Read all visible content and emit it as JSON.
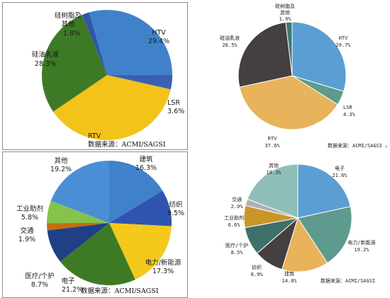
{
  "chart_data": [
    {
      "type": "pie",
      "title": "",
      "source": "数据来源：ACMI/SAGSI",
      "slices": [
        {
          "label": "HTV",
          "value": 29.4,
          "text": "29.4%",
          "color": "#3f82c9"
        },
        {
          "label": "LSR",
          "value": 3.6,
          "text": "3.6%",
          "color": "#3a5fb5"
        },
        {
          "label": "RTV",
          "value": 37.0,
          "text": "",
          "color": "#f2c318"
        },
        {
          "label": "硅油乳液",
          "value": 28.3,
          "text": "28.3%",
          "color": "#3e7a26"
        },
        {
          "label": "硅树脂及其他",
          "value": 1.8,
          "text": "1.8%",
          "color": "#2f55a8"
        }
      ]
    },
    {
      "type": "pie",
      "title": "",
      "source": "数据来源：ACMI/SAGSI",
      "slices": [
        {
          "label": "HTV",
          "value": 29.7,
          "text": "29.7%",
          "color": "#5b9ed3"
        },
        {
          "label": "LSR",
          "value": 4.3,
          "text": "4.3%",
          "color": "#5f9a8e"
        },
        {
          "label": "RTV",
          "value": 37.6,
          "text": "37.6%",
          "color": "#e8b35a"
        },
        {
          "label": "硅油乳液",
          "value": 26.5,
          "text": "26.5%",
          "color": "#463f3f"
        },
        {
          "label": "硅树脂及其他",
          "value": 1.9,
          "text": "1.9%",
          "color": "#3f7a73"
        }
      ]
    },
    {
      "type": "pie",
      "title": "",
      "source": "数据来源：ACMI/SAGSI",
      "slices": [
        {
          "label": "建筑",
          "value": 16.3,
          "text": "16.3%",
          "color": "#3f82c9"
        },
        {
          "label": "纺织",
          "value": 9.5,
          "text": "9.5%",
          "color": "#2f55b0"
        },
        {
          "label": "电力/新能源",
          "value": 17.3,
          "text": "17.3%",
          "color": "#f4c91c"
        },
        {
          "label": "电子",
          "value": 21.2,
          "text": "21.2%",
          "color": "#3e7a26"
        },
        {
          "label": "医疗/个护",
          "value": 8.7,
          "text": "8.7%",
          "color": "#1f3f86"
        },
        {
          "label": "交通",
          "value": 1.9,
          "text": "1.9%",
          "color": "#c46e10"
        },
        {
          "label": "工业助剂",
          "value": 5.8,
          "text": "5.8%",
          "color": "#86c34a"
        },
        {
          "label": "其他",
          "value": 19.2,
          "text": "19.2%",
          "color": "#4a8fd6"
        }
      ]
    },
    {
      "type": "pie",
      "title": "",
      "source": "数据来源：ACMI/SAGSI",
      "slices": [
        {
          "label": "电子",
          "value": 21.6,
          "text": "21.6%",
          "color": "#5b9ed3"
        },
        {
          "label": "电力/新能源",
          "value": 19.2,
          "text": "19.2%",
          "color": "#5f9a8e"
        },
        {
          "label": "建筑",
          "value": 14.0,
          "text": "14.0%",
          "color": "#e8b35a"
        },
        {
          "label": "纺织",
          "value": 8.9,
          "text": "8.9%",
          "color": "#463f3f"
        },
        {
          "label": "医疗/个护",
          "value": 8.5,
          "text": "8.5%",
          "color": "#3f6f6a"
        },
        {
          "label": "工业助剂",
          "value": 6.6,
          "text": "6.6%",
          "color": "#c9962a"
        },
        {
          "label": "交通",
          "value": 2.0,
          "text": "2.0%",
          "color": "#b0b0b0"
        },
        {
          "label": "其他",
          "value": 19.3,
          "text": "19.3%",
          "color": "#8fbfb8"
        }
      ]
    }
  ],
  "marks": {
    "corner": "↲"
  }
}
